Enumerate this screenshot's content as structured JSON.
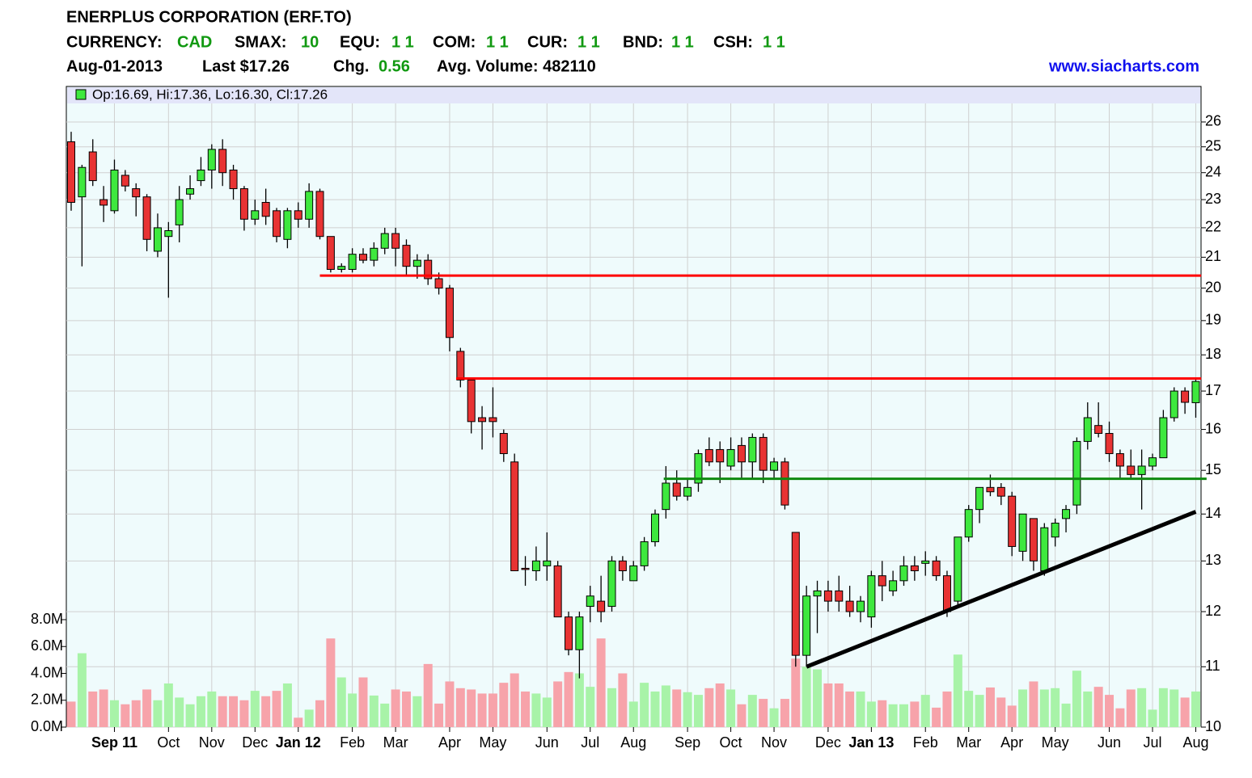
{
  "chart_data": {
    "type": "candlestick",
    "header": {
      "title": "ENERPLUS CORPORATION (ERF.TO)",
      "fields": [
        {
          "label": "CURRENCY:",
          "value": "CAD"
        },
        {
          "label": "SMAX:",
          "value": "10"
        },
        {
          "label": "EQU:",
          "value": "1 1"
        },
        {
          "label": "COM:",
          "value": "1 1"
        },
        {
          "label": "CUR:",
          "value": "1 1"
        },
        {
          "label": "BND:",
          "value": "1 1"
        },
        {
          "label": "CSH:",
          "value": "1 1"
        }
      ],
      "date": "Aug-01-2013",
      "last": "Last $17.26",
      "chg_label": "Chg.",
      "chg": "0.56",
      "avg_volume": "Avg. Volume: 482110",
      "website": "www.siacharts.com"
    },
    "legend": "Op:16.69, Hi:17.36, Lo:16.30, Cl:17.26",
    "categories": [
      null,
      null,
      null,
      null,
      "Sep 11",
      null,
      null,
      null,
      null,
      "Oct",
      null,
      null,
      null,
      "Nov",
      null,
      null,
      null,
      "Dec",
      null,
      null,
      null,
      "Jan 12",
      null,
      null,
      null,
      null,
      "Feb",
      null,
      null,
      null,
      "Mar",
      null,
      null,
      null,
      null,
      "Apr",
      null,
      null,
      null,
      "May",
      null,
      null,
      null,
      null,
      "Jun",
      null,
      null,
      null,
      "Jul",
      null,
      null,
      null,
      "Aug",
      null,
      null,
      null,
      null,
      "Sep",
      null,
      null,
      null,
      "Oct",
      null,
      null,
      null,
      "Nov",
      null,
      null,
      null,
      null,
      "Dec",
      null,
      null,
      null,
      "Jan 13",
      null,
      null,
      null,
      null,
      "Feb",
      null,
      null,
      null,
      "Mar",
      null,
      null,
      null,
      "Apr",
      null,
      null,
      null,
      "May",
      null,
      null,
      null,
      null,
      "Jun",
      null,
      null,
      null,
      "Jul",
      null,
      null,
      null,
      "Aug"
    ],
    "open": [
      25.2,
      23.1,
      24.8,
      23.0,
      22.6,
      23.9,
      23.4,
      23.1,
      21.2,
      21.7,
      22.1,
      23.2,
      23.7,
      24.1,
      24.9,
      24.1,
      23.4,
      22.3,
      22.9,
      22.6,
      21.6,
      22.6,
      22.3,
      23.3,
      21.7,
      20.6,
      20.6,
      21.1,
      20.9,
      21.3,
      21.8,
      21.4,
      20.7,
      20.9,
      20.3,
      20.0,
      18.1,
      17.3,
      16.3,
      16.3,
      15.9,
      15.2,
      12.85,
      12.8,
      12.9,
      12.9,
      11.9,
      11.3,
      12.1,
      12.2,
      12.1,
      13.0,
      12.6,
      12.9,
      13.4,
      14.1,
      14.7,
      14.4,
      14.7,
      15.5,
      15.5,
      15.1,
      15.6,
      15.2,
      15.8,
      15.0,
      15.2,
      13.6,
      11.2,
      12.3,
      12.4,
      12.4,
      12.2,
      12.0,
      11.9,
      12.7,
      12.4,
      12.6,
      12.9,
      12.95,
      13.0,
      12.7,
      12.2,
      13.5,
      14.1,
      14.6,
      14.6,
      14.4,
      13.2,
      13.9,
      12.8,
      13.5,
      13.9,
      14.2,
      15.7,
      16.1,
      15.9,
      15.4,
      15.1,
      14.9,
      15.1,
      15.3,
      16.3,
      17.0,
      16.69
    ],
    "high": [
      25.6,
      24.3,
      25.3,
      23.5,
      24.5,
      24.1,
      23.6,
      23.2,
      22.5,
      22.2,
      23.5,
      23.9,
      24.6,
      25.1,
      25.3,
      24.3,
      23.5,
      23.0,
      23.4,
      22.7,
      22.7,
      22.9,
      23.6,
      23.4,
      21.7,
      20.8,
      21.3,
      21.3,
      21.5,
      22.0,
      22.0,
      21.6,
      21.1,
      21.1,
      20.5,
      20.1,
      18.2,
      17.3,
      16.6,
      17.1,
      16.0,
      15.4,
      13.1,
      13.3,
      13.6,
      13.0,
      12.0,
      12.0,
      12.5,
      12.7,
      13.1,
      13.1,
      13.0,
      13.5,
      14.1,
      15.1,
      15.0,
      14.8,
      15.5,
      15.8,
      15.7,
      15.8,
      15.8,
      15.9,
      15.9,
      15.3,
      15.3,
      13.6,
      12.5,
      12.6,
      12.6,
      12.7,
      12.5,
      12.3,
      12.8,
      13.0,
      12.8,
      13.1,
      13.1,
      13.2,
      13.1,
      12.8,
      13.5,
      14.2,
      14.6,
      14.9,
      14.7,
      14.5,
      14.0,
      13.9,
      13.8,
      13.9,
      14.2,
      15.8,
      16.7,
      16.7,
      16.2,
      15.5,
      15.5,
      15.5,
      15.4,
      16.5,
      17.1,
      17.1,
      17.36
    ],
    "low": [
      22.6,
      20.7,
      23.5,
      22.2,
      22.5,
      23.3,
      22.4,
      21.2,
      21.0,
      19.7,
      21.5,
      23.0,
      23.5,
      23.4,
      23.5,
      23.0,
      21.9,
      22.1,
      22.1,
      21.5,
      21.3,
      22.0,
      22.0,
      21.6,
      20.5,
      20.5,
      20.5,
      20.8,
      20.7,
      21.1,
      20.7,
      20.4,
      20.3,
      20.1,
      19.8,
      18.1,
      17.1,
      15.9,
      15.5,
      15.8,
      15.2,
      12.8,
      12.5,
      12.6,
      12.6,
      11.9,
      11.2,
      10.8,
      11.8,
      11.8,
      12.0,
      12.6,
      12.6,
      12.8,
      13.3,
      13.9,
      14.3,
      14.3,
      14.5,
      15.1,
      14.7,
      15.0,
      14.8,
      14.8,
      14.7,
      14.8,
      14.1,
      11.0,
      11.0,
      11.6,
      12.0,
      12.0,
      11.9,
      11.8,
      11.7,
      12.2,
      12.3,
      12.5,
      12.6,
      12.7,
      12.6,
      11.9,
      12.1,
      13.4,
      13.8,
      14.4,
      14.2,
      13.1,
      13.0,
      12.8,
      12.7,
      13.3,
      13.6,
      14.0,
      15.5,
      15.8,
      15.2,
      14.8,
      14.8,
      14.1,
      15.0,
      15.3,
      16.2,
      16.4,
      16.3
    ],
    "close": [
      22.9,
      24.2,
      23.7,
      22.8,
      24.1,
      23.5,
      23.1,
      21.6,
      22.0,
      21.9,
      23.0,
      23.4,
      24.1,
      24.9,
      24.0,
      23.4,
      22.3,
      22.6,
      22.4,
      21.7,
      22.6,
      22.3,
      23.3,
      21.7,
      20.6,
      20.7,
      21.1,
      20.9,
      21.3,
      21.8,
      21.3,
      20.7,
      20.9,
      20.3,
      20.0,
      18.5,
      17.3,
      16.2,
      16.2,
      16.2,
      15.4,
      12.8,
      12.83,
      13.0,
      13.0,
      11.9,
      11.3,
      11.9,
      12.3,
      12.0,
      13.0,
      12.8,
      12.9,
      13.4,
      14.0,
      14.7,
      14.4,
      14.6,
      15.4,
      15.2,
      15.2,
      15.5,
      15.2,
      15.8,
      15.0,
      15.2,
      14.2,
      11.2,
      12.3,
      12.4,
      12.2,
      12.2,
      12.0,
      12.2,
      12.7,
      12.5,
      12.6,
      12.9,
      12.8,
      13.0,
      12.7,
      12.0,
      13.5,
      14.1,
      14.6,
      14.5,
      14.4,
      13.3,
      14.0,
      13.0,
      13.7,
      13.8,
      14.1,
      15.7,
      16.3,
      15.9,
      15.4,
      15.1,
      14.9,
      15.1,
      15.3,
      16.3,
      17.0,
      16.7,
      17.26
    ],
    "volume": [
      1.9,
      5.5,
      2.65,
      2.8,
      2.0,
      1.7,
      2.0,
      2.8,
      2.0,
      3.25,
      2.2,
      1.7,
      2.3,
      2.65,
      2.3,
      2.3,
      2.0,
      2.7,
      2.3,
      2.7,
      3.25,
      0.7,
      1.3,
      2.0,
      6.6,
      3.7,
      2.5,
      3.7,
      2.35,
      1.75,
      2.8,
      2.65,
      2.3,
      4.7,
      1.75,
      3.4,
      2.9,
      2.8,
      2.5,
      2.5,
      3.3,
      4.0,
      2.65,
      2.5,
      2.2,
      3.4,
      4.1,
      4.0,
      3.0,
      6.6,
      2.9,
      4.0,
      1.9,
      3.3,
      2.65,
      3.1,
      2.8,
      2.6,
      2.4,
      2.9,
      3.25,
      2.8,
      1.7,
      2.4,
      2.1,
      1.4,
      2.1,
      5.1,
      4.5,
      4.3,
      3.25,
      3.25,
      2.65,
      2.65,
      1.9,
      2.0,
      1.7,
      1.7,
      1.9,
      2.4,
      1.45,
      2.65,
      5.4,
      2.7,
      2.4,
      2.95,
      2.2,
      1.6,
      2.8,
      3.4,
      2.8,
      2.9,
      1.75,
      4.2,
      2.65,
      3.0,
      2.4,
      1.4,
      2.8,
      2.9,
      1.3,
      2.9,
      2.8,
      2.2,
      2.65
    ],
    "up_color": "#3ee83e",
    "down_color": "#e83333",
    "up_volume_color": "#a8f3a8",
    "down_volume_color": "#f7a3aa",
    "log_scale": true,
    "grid": true,
    "ylim": [
      10,
      27.5
    ],
    "yticks": [
      10,
      11,
      12,
      13,
      14,
      15,
      16,
      17,
      18,
      19,
      20,
      21,
      22,
      23,
      24,
      25,
      26
    ],
    "y2lim": [
      0,
      8
    ],
    "y2ticks": [
      {
        "value": 0,
        "label": "0.0M"
      },
      {
        "value": 2,
        "label": "2.0M"
      },
      {
        "value": 4,
        "label": "4.0M"
      },
      {
        "value": 6,
        "label": "6.0M"
      },
      {
        "value": 8,
        "label": "8.0M"
      }
    ],
    "lines": [
      {
        "x": [
          23,
          104.5
        ],
        "y": [
          20.4,
          20.4
        ],
        "color": "#ff0000"
      },
      {
        "x": [
          35.6,
          104.5
        ],
        "y": [
          17.34,
          17.34
        ],
        "color": "#ff0000"
      },
      {
        "x": [
          54.8,
          105
        ],
        "y": [
          14.8,
          14.8
        ],
        "color": "#108a10"
      },
      {
        "x": [
          68,
          104
        ],
        "y": [
          11.0,
          14.05
        ],
        "color": "#000000"
      }
    ]
  }
}
